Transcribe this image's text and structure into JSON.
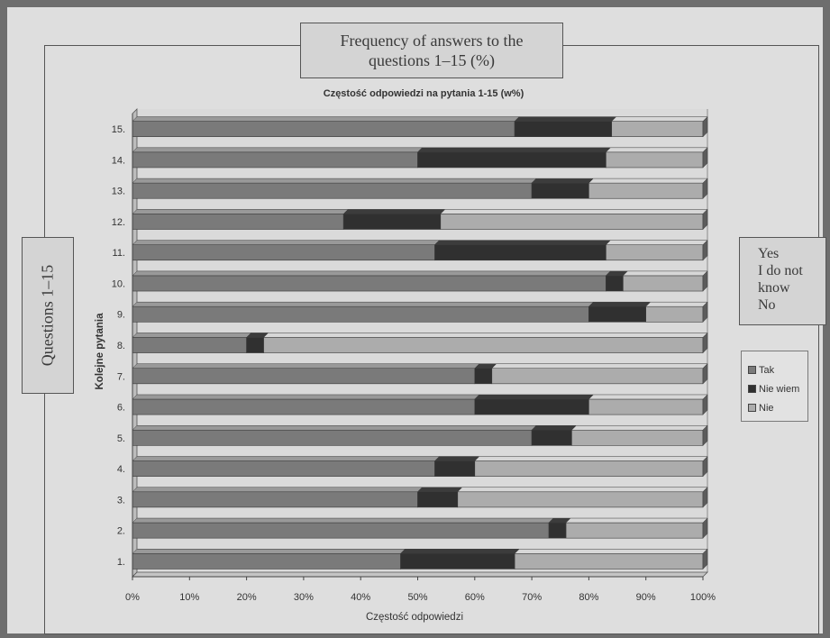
{
  "callouts": {
    "title_line1": "Frequency of answers to the",
    "title_line2": "questions 1–15 (%)",
    "left": "Questions 1–15",
    "right_lines": [
      "Yes",
      "I do not",
      "know",
      "No"
    ]
  },
  "colors": {
    "tak": "#7a7a7a",
    "nie_wiem": "#303030",
    "nie": "#acacac"
  },
  "chart_data": {
    "type": "bar",
    "orientation": "horizontal",
    "stacked": true,
    "percent": true,
    "title": "Częstość odpowiedzi na pytania 1-15 (w%)",
    "xlabel": "Częstość odpowiedzi",
    "ylabel": "Kolejne pytania",
    "categories": [
      "1.",
      "2.",
      "3.",
      "4.",
      "5.",
      "6.",
      "7.",
      "8.",
      "9.",
      "10.",
      "11.",
      "12.",
      "13.",
      "14.",
      "15."
    ],
    "series": [
      {
        "name": "Tak",
        "values": [
          47,
          73,
          50,
          53,
          70,
          60,
          60,
          20,
          80,
          83,
          53,
          37,
          70,
          50,
          67
        ]
      },
      {
        "name": "Nie wiem",
        "values": [
          20,
          3,
          7,
          7,
          7,
          20,
          3,
          3,
          10,
          3,
          30,
          17,
          10,
          33,
          17
        ]
      },
      {
        "name": "Nie",
        "values": [
          33,
          24,
          43,
          40,
          23,
          20,
          37,
          77,
          10,
          14,
          17,
          46,
          20,
          17,
          16
        ]
      }
    ],
    "xlim": [
      0,
      100
    ],
    "xticks": [
      "0%",
      "10%",
      "20%",
      "30%",
      "40%",
      "50%",
      "60%",
      "70%",
      "80%",
      "90%",
      "100%"
    ],
    "legend": [
      "Tak",
      "Nie wiem",
      "Nie"
    ],
    "legend_position": "right",
    "grid": false
  }
}
